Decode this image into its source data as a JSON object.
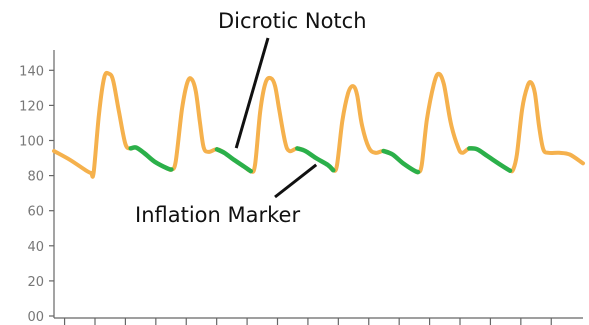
{
  "colors": {
    "waveform": "#f5b14d",
    "inflation": "#2bb04a",
    "axis": "#666666",
    "tick_label": "#777777",
    "annotation": "#111111"
  },
  "chart_data": {
    "type": "line",
    "title": "",
    "xlabel": "",
    "ylabel": "",
    "ylim": [
      0,
      150
    ],
    "yticks": [
      0,
      20,
      40,
      60,
      80,
      100,
      120,
      140
    ],
    "ytick_labels": [
      "00",
      "20",
      "40",
      "60",
      "80",
      "100",
      "120",
      "140"
    ],
    "xlim": [
      0,
      100
    ],
    "xticks": [
      2,
      7.75,
      13.5,
      19.25,
      25,
      30.75,
      36.5,
      42.25,
      48,
      53.75,
      59.5,
      65.25,
      71,
      76.75,
      82.5,
      88.25,
      94
    ],
    "grid": false,
    "legend": false,
    "series": [
      {
        "points": [
          [
            0,
            94
          ],
          [
            3,
            89
          ],
          [
            6,
            83
          ],
          [
            7,
            81.5
          ],
          [
            7.5,
            82
          ],
          [
            8.5,
            115
          ],
          [
            9.5,
            136
          ],
          [
            10.4,
            138
          ],
          [
            11.2,
            134
          ],
          [
            12.3,
            116
          ],
          [
            13.5,
            98
          ],
          [
            14.5,
            95.5
          ],
          [
            15.5,
            96
          ],
          [
            17,
            93
          ],
          [
            19,
            88
          ],
          [
            21.5,
            84
          ],
          [
            22.2,
            83.5
          ],
          [
            23,
            88
          ],
          [
            24.2,
            118
          ],
          [
            25.2,
            133
          ],
          [
            26,
            135
          ],
          [
            26.8,
            128
          ],
          [
            27.6,
            110
          ],
          [
            28.3,
            96
          ],
          [
            29.2,
            93.5
          ],
          [
            30.8,
            95
          ],
          [
            32.2,
            93
          ],
          [
            34,
            89
          ],
          [
            36,
            85
          ],
          [
            37.2,
            82.5
          ],
          [
            38,
            86
          ],
          [
            39,
            117
          ],
          [
            40,
            133
          ],
          [
            41,
            135.5
          ],
          [
            41.8,
            131
          ],
          [
            42.6,
            117
          ],
          [
            43.7,
            99
          ],
          [
            44.5,
            94
          ],
          [
            46,
            95.5
          ],
          [
            47.5,
            94
          ],
          [
            49.5,
            90
          ],
          [
            51.8,
            86
          ],
          [
            52.8,
            83
          ],
          [
            53.5,
            86
          ],
          [
            54.5,
            111
          ],
          [
            55.6,
            127
          ],
          [
            56.5,
            131
          ],
          [
            57.3,
            126
          ],
          [
            58.2,
            109
          ],
          [
            59.5,
            96
          ],
          [
            60.8,
            93
          ],
          [
            62.3,
            94
          ],
          [
            64,
            92
          ],
          [
            66,
            87
          ],
          [
            68,
            83
          ],
          [
            68.8,
            82
          ],
          [
            69.5,
            86
          ],
          [
            70.5,
            112
          ],
          [
            71.8,
            132
          ],
          [
            72.7,
            138
          ],
          [
            73.7,
            132
          ],
          [
            75,
            110
          ],
          [
            76.4,
            96
          ],
          [
            77.2,
            93
          ],
          [
            78.5,
            95.5
          ],
          [
            80,
            95
          ],
          [
            82,
            91
          ],
          [
            84.5,
            86
          ],
          [
            86.2,
            82.8
          ],
          [
            86.8,
            83.5
          ],
          [
            87.5,
            92
          ],
          [
            88.5,
            118
          ],
          [
            89.5,
            131
          ],
          [
            90.2,
            133
          ],
          [
            90.9,
            127
          ],
          [
            91.7,
            108
          ],
          [
            92.5,
            95
          ],
          [
            93.5,
            93
          ],
          [
            95.5,
            93
          ],
          [
            97.5,
            92
          ],
          [
            100,
            87
          ]
        ]
      }
    ],
    "highlight_segments": [
      [
        [
          14.5,
          95.5
        ],
        [
          15.5,
          96
        ],
        [
          17,
          93
        ],
        [
          19,
          88
        ],
        [
          21.5,
          84
        ],
        [
          22.2,
          83.5
        ]
      ],
      [
        [
          30.8,
          95
        ],
        [
          32.2,
          93
        ],
        [
          34,
          89
        ],
        [
          36,
          85
        ],
        [
          37.2,
          82.5
        ]
      ],
      [
        [
          46,
          95.5
        ],
        [
          47.5,
          94
        ],
        [
          49.5,
          90
        ],
        [
          51.8,
          86
        ],
        [
          52.8,
          83
        ]
      ],
      [
        [
          62.3,
          94
        ],
        [
          64,
          92
        ],
        [
          66,
          87
        ],
        [
          68,
          83
        ],
        [
          68.8,
          82
        ]
      ],
      [
        [
          78.5,
          95.5
        ],
        [
          80,
          95
        ],
        [
          82,
          91
        ],
        [
          84.5,
          86
        ],
        [
          86.2,
          82.8
        ]
      ]
    ],
    "annotations": [
      {
        "text": "Dicrotic Notch",
        "target": [
          33.5,
          94
        ]
      },
      {
        "text": "Inflation Marker",
        "target": [
          49.0,
          89
        ]
      }
    ]
  }
}
